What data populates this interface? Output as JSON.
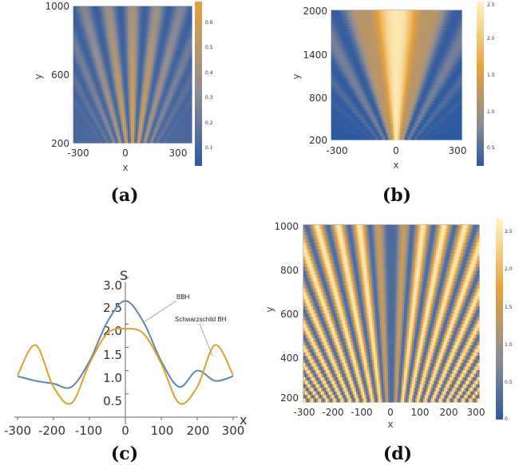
{
  "panels": {
    "a": {
      "label": "(a)",
      "xlabel": "x",
      "ylabel": "y",
      "xticks": [
        "-300",
        "0",
        "300"
      ],
      "yticks": [
        "1000",
        "600",
        "200"
      ],
      "cbar_ticks": [
        "0.6",
        "0.5",
        "0.4",
        "0.3",
        "0.2",
        "0.1"
      ]
    },
    "b": {
      "label": "(b)",
      "xlabel": "x",
      "ylabel": "y",
      "xticks": [
        "-300",
        "0",
        "300"
      ],
      "yticks": [
        "2000",
        "1400",
        "800",
        "200"
      ],
      "cbar_ticks": [
        "2.5",
        "2.0",
        "1.5",
        "1.0",
        "0.5"
      ]
    },
    "c": {
      "label": "(c)",
      "xlabel": "x",
      "ylabel": "S",
      "xticks": [
        "-300",
        "-200",
        "-100",
        "0",
        "100",
        "200",
        "300"
      ],
      "yticks": [
        "0.5",
        "1.0",
        "1.5",
        "2.0",
        "2.5",
        "3.0"
      ]
    },
    "d": {
      "label": "(d)",
      "xlabel": "x",
      "ylabel": "y",
      "xticks": [
        "-300",
        "-200",
        "-100",
        "0",
        "100",
        "200",
        "300"
      ],
      "yticks": [
        "1000",
        "800",
        "600",
        "400",
        "200"
      ],
      "cbar_ticks": [
        "2.5",
        "2.0",
        "1.5",
        "1.0",
        "0.5",
        "0"
      ]
    }
  },
  "colors": {
    "blue": "#2d5aa0",
    "grey": "#8c8c94",
    "orange": "#e8a13a",
    "cream": "#fdf5c6",
    "line_bbh": "#5b86b8",
    "line_schw": "#dfa12b"
  },
  "chart_data": [
    {
      "type": "heatmap",
      "panel": "a",
      "xlabel": "x",
      "ylabel": "y",
      "xlim": [
        -300,
        300
      ],
      "ylim": [
        200,
        1000
      ],
      "zlim": [
        0,
        0.7
      ]
    },
    {
      "type": "heatmap",
      "panel": "b",
      "xlabel": "x",
      "ylabel": "y",
      "xlim": [
        -300,
        300
      ],
      "ylim": [
        200,
        2000
      ],
      "zlim": [
        0.2,
        2.6
      ]
    },
    {
      "type": "line",
      "panel": "c",
      "xlabel": "x",
      "ylabel": "S",
      "xlim": [
        -300,
        300
      ],
      "ylim": [
        0,
        3.0
      ],
      "series": [
        {
          "name": "BBH",
          "x": [
            -300,
            -250,
            -200,
            -150,
            -100,
            -50,
            0,
            50,
            100,
            150,
            200,
            250,
            300
          ],
          "y": [
            0.88,
            0.78,
            0.72,
            0.65,
            1.2,
            2.05,
            2.5,
            2.05,
            1.2,
            0.65,
            1.0,
            0.78,
            0.88
          ]
        },
        {
          "name": "Schwarzschild BH",
          "x": [
            -300,
            -250,
            -200,
            -150,
            -100,
            -50,
            0,
            50,
            100,
            150,
            200,
            250,
            300
          ],
          "y": [
            0.9,
            1.55,
            0.65,
            0.3,
            1.15,
            1.8,
            1.9,
            1.8,
            1.15,
            0.3,
            0.65,
            1.55,
            0.9
          ]
        }
      ]
    },
    {
      "type": "heatmap",
      "panel": "d",
      "xlabel": "x",
      "ylabel": "y",
      "xlim": [
        -300,
        300
      ],
      "ylim": [
        200,
        1000
      ],
      "zlim": [
        0,
        2.6
      ]
    }
  ]
}
